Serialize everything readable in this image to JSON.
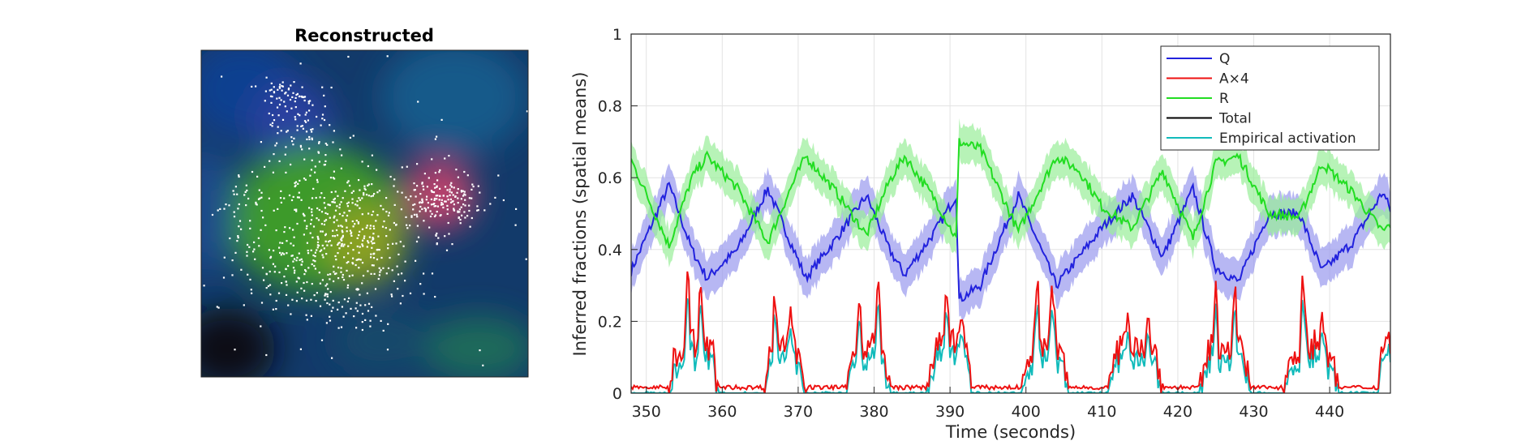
{
  "image_panel": {
    "title": "Reconstructed",
    "channels": [
      "Q (blue)",
      "A (red)",
      "R (green)"
    ]
  },
  "chart_data": {
    "type": "line",
    "xlabel": "Time (seconds)",
    "ylabel": "Inferred fractions (spatial means)",
    "xlim": [
      348,
      448
    ],
    "ylim": [
      0,
      1
    ],
    "xticks": [
      350,
      360,
      370,
      380,
      390,
      400,
      410,
      420,
      430,
      440
    ],
    "yticks": [
      0,
      0.2,
      0.4,
      0.6,
      0.8,
      1
    ],
    "grid": true,
    "legend_position": "top-right",
    "legend": [
      "Q",
      "A×4",
      "R",
      "Total",
      "Empirical activation"
    ],
    "colors": {
      "Q": "#2222dd",
      "Q_band": "#9999ee",
      "A": "#ee1111",
      "R": "#22dd22",
      "R_band": "#99ee99",
      "Total": "#000000",
      "Empirical": "#11bbbb"
    },
    "series": [
      {
        "name": "Q",
        "x": [
          348,
          353,
          356,
          358,
          362,
          366,
          369,
          371,
          375,
          379,
          382,
          384,
          388,
          390.8,
          391.2,
          394,
          399,
          404,
          407,
          410,
          414,
          418,
          422,
          425,
          428,
          432,
          436,
          439,
          443,
          447,
          448
        ],
        "values": [
          0.34,
          0.58,
          0.4,
          0.32,
          0.4,
          0.57,
          0.42,
          0.32,
          0.43,
          0.55,
          0.4,
          0.33,
          0.45,
          0.55,
          0.26,
          0.3,
          0.55,
          0.3,
          0.38,
          0.46,
          0.55,
          0.38,
          0.57,
          0.35,
          0.31,
          0.5,
          0.5,
          0.34,
          0.42,
          0.56,
          0.51
        ],
        "band_halfwidth": 0.055
      },
      {
        "name": "R",
        "x": [
          348,
          353,
          356,
          358,
          362,
          366,
          369,
          371,
          375,
          379,
          382,
          384,
          388,
          390.8,
          391.2,
          394,
          399,
          404,
          407,
          410,
          414,
          418,
          422,
          425,
          428,
          432,
          436,
          439,
          443,
          447,
          448
        ],
        "values": [
          0.65,
          0.41,
          0.6,
          0.66,
          0.57,
          0.42,
          0.57,
          0.66,
          0.56,
          0.44,
          0.59,
          0.66,
          0.54,
          0.43,
          0.7,
          0.68,
          0.45,
          0.66,
          0.62,
          0.52,
          0.46,
          0.62,
          0.43,
          0.64,
          0.66,
          0.5,
          0.49,
          0.64,
          0.56,
          0.45,
          0.47
        ],
        "band_halfwidth": 0.05
      },
      {
        "name": "A×4",
        "activity_bursts": [
          {
            "start": 353,
            "end": 359.5,
            "peak_times": [
              355.5,
              357.2
            ],
            "peak_values": [
              0.31,
              0.29
            ]
          },
          {
            "start": 365.5,
            "end": 371,
            "peak_times": [
              367,
              369
            ],
            "peak_values": [
              0.27,
              0.26
            ]
          },
          {
            "start": 376.5,
            "end": 382,
            "peak_times": [
              378,
              380.5
            ],
            "peak_values": [
              0.26,
              0.28
            ]
          },
          {
            "start": 387,
            "end": 393,
            "peak_times": [
              389.5,
              391.5
            ],
            "peak_values": [
              0.28,
              0.25
            ]
          },
          {
            "start": 399.5,
            "end": 405.5,
            "peak_times": [
              401.5,
              403.5
            ],
            "peak_values": [
              0.28,
              0.29
            ]
          },
          {
            "start": 411,
            "end": 418,
            "peak_times": [
              413.5,
              416
            ],
            "peak_values": [
              0.23,
              0.21
            ]
          },
          {
            "start": 423,
            "end": 429.5,
            "peak_times": [
              425,
              427.5
            ],
            "peak_values": [
              0.27,
              0.26
            ]
          },
          {
            "start": 434,
            "end": 441,
            "peak_times": [
              436.5,
              439
            ],
            "peak_values": [
              0.29,
              0.24
            ]
          },
          {
            "start": 446.5,
            "end": 448,
            "peak_times": [
              447.8
            ],
            "peak_values": [
              0.17
            ]
          }
        ],
        "baseline": 0.01
      },
      {
        "name": "Empirical activation",
        "follows": "A×4",
        "scale": 0.85
      },
      {
        "name": "Total",
        "values_note": "not visible in plotted range"
      }
    ]
  }
}
